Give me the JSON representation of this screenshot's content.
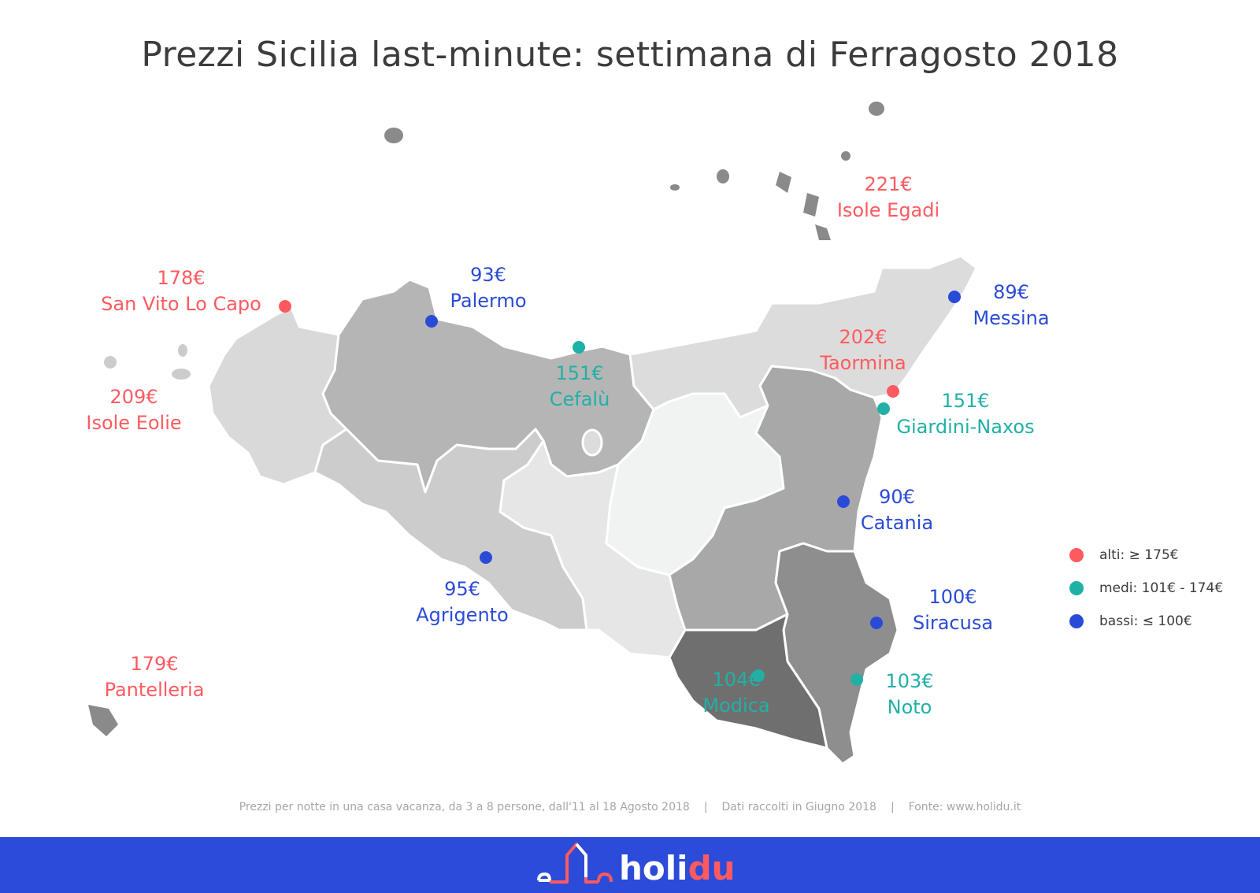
{
  "title": "Prezzi Sicilia last-minute: settimana di Ferragosto 2018",
  "colors": {
    "alti": "#ff5a5f",
    "medi": "#21b0a6",
    "bassi": "#2a4bd7",
    "banner": "#2b4bd8"
  },
  "cities": [
    {
      "name": "Isole Egadi",
      "price": "221€",
      "tier": "alti"
    },
    {
      "name": "San Vito Lo Capo",
      "price": "178€",
      "tier": "alti"
    },
    {
      "name": "Palermo",
      "price": "93€",
      "tier": "bassi"
    },
    {
      "name": "Messina",
      "price": "89€",
      "tier": "bassi"
    },
    {
      "name": "Taormina",
      "price": "202€",
      "tier": "alti"
    },
    {
      "name": "Isole Eolie",
      "price": "209€",
      "tier": "alti"
    },
    {
      "name": "Cefalù",
      "price": "151€",
      "tier": "medi"
    },
    {
      "name": "Giardini-Naxos",
      "price": "151€",
      "tier": "medi"
    },
    {
      "name": "Catania",
      "price": "90€",
      "tier": "bassi"
    },
    {
      "name": "Agrigento",
      "price": "95€",
      "tier": "bassi"
    },
    {
      "name": "Siracusa",
      "price": "100€",
      "tier": "bassi"
    },
    {
      "name": "Pantelleria",
      "price": "179€",
      "tier": "alti"
    },
    {
      "name": "Modica",
      "price": "104€",
      "tier": "medi"
    },
    {
      "name": "Noto",
      "price": "103€",
      "tier": "medi"
    }
  ],
  "legend": [
    {
      "label": "alti: ≥ 175€",
      "tier": "alti"
    },
    {
      "label": "medi: 101€ - 174€",
      "tier": "medi"
    },
    {
      "label": "bassi: ≤ 100€",
      "tier": "bassi"
    }
  ],
  "footer": {
    "note": "Prezzi per notte in una casa vacanza, da 3 a 8 persone, dall'11 al 18 Agosto 2018",
    "separator": "|",
    "collected": "Dati raccolti in Giugno 2018",
    "source": "Fonte: www.holidu.it"
  },
  "logo": {
    "part1": "holi",
    "part2": "du"
  }
}
